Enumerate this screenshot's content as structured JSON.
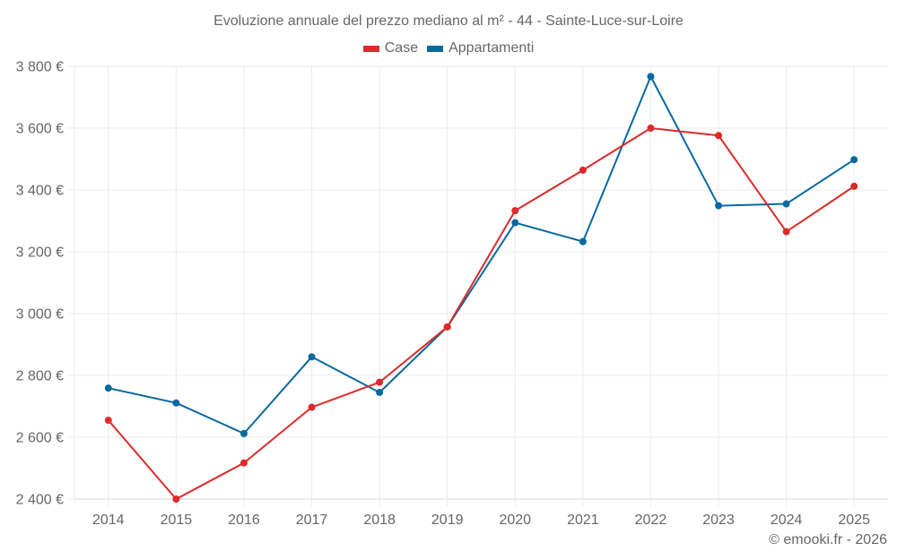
{
  "chart_data": {
    "type": "line",
    "title": "Evoluzione annuale del prezzo mediano al m² - 44 - Sainte-Luce-sur-Loire",
    "xlabel": "",
    "ylabel": "",
    "categories": [
      "2014",
      "2015",
      "2016",
      "2017",
      "2018",
      "2019",
      "2020",
      "2021",
      "2022",
      "2023",
      "2024",
      "2025"
    ],
    "series": [
      {
        "name": "Case",
        "color": "#dc2a2a",
        "values": [
          2655,
          2400,
          2517,
          2697,
          2778,
          2957,
          3333,
          3464,
          3600,
          3576,
          3265,
          3412
        ]
      },
      {
        "name": "Appartamenti",
        "color": "#0868a0",
        "values": [
          2759,
          2711,
          2612,
          2860,
          2745,
          2957,
          3294,
          3233,
          3767,
          3349,
          3355,
          3498
        ]
      }
    ],
    "ylim": [
      2400,
      3800
    ],
    "yticks": [
      2400,
      2600,
      2800,
      3000,
      3200,
      3400,
      3600,
      3800
    ],
    "ytick_labels": [
      "2 400 €",
      "2 600 €",
      "2 800 €",
      "3 000 €",
      "3 200 €",
      "3 400 €",
      "3 600 €",
      "3 800 €"
    ],
    "grid": true,
    "legend_position": "top-center"
  },
  "footer": {
    "copyright": "© emooki.fr - 2026"
  }
}
